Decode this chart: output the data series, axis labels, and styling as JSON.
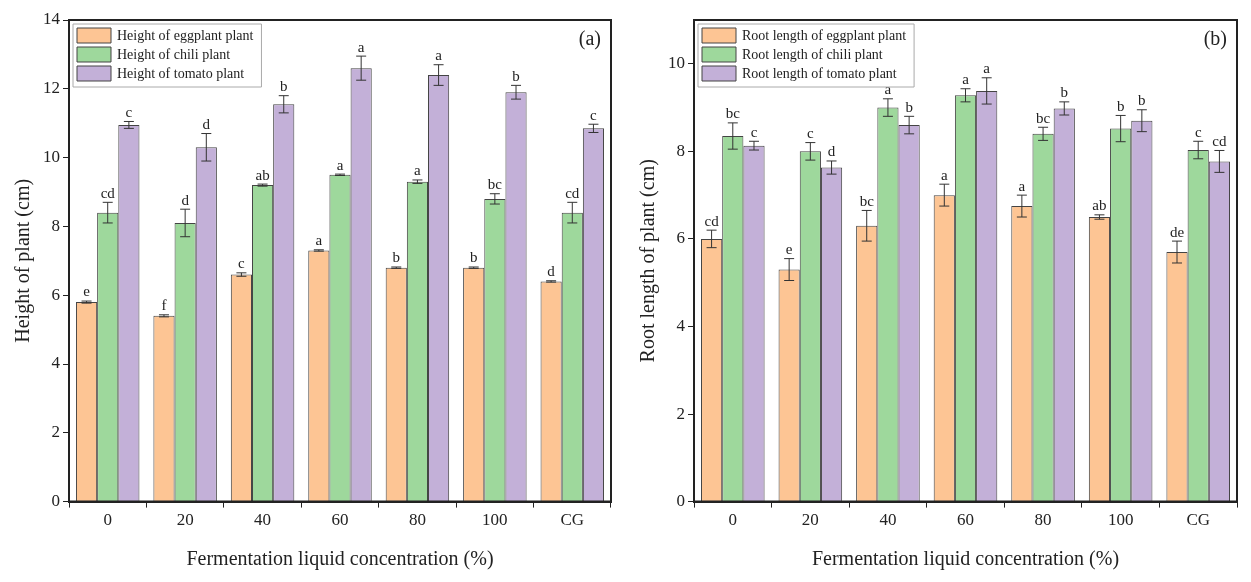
{
  "chart_data": [
    {
      "type": "bar",
      "xlabel": "Fermentation liquid concentration (%)",
      "ylabel": "Height of plant (cm)",
      "categories": [
        "0",
        "20",
        "40",
        "60",
        "80",
        "100",
        "CG"
      ],
      "ylim": [
        0,
        14
      ],
      "yticks": [
        0,
        2,
        4,
        6,
        8,
        10,
        12,
        14
      ],
      "grid": false,
      "legend": "top left",
      "series": [
        {
          "name": "Height of eggplant plant",
          "color": "#fdc594",
          "values": [
            5.8,
            5.4,
            6.6,
            7.3,
            6.8,
            6.8,
            6.4
          ],
          "errors": [
            0.03,
            0.03,
            0.05,
            0.02,
            0.02,
            0.02,
            0.02
          ],
          "value_labels": [
            "e",
            "f",
            "c",
            "a",
            "b",
            "b",
            "d"
          ]
        },
        {
          "name": "Height of chili plant",
          "color": "#9ed89c",
          "values": [
            8.4,
            8.1,
            9.2,
            9.5,
            9.3,
            8.8,
            8.4
          ],
          "errors": [
            0.3,
            0.4,
            0.03,
            0.02,
            0.05,
            0.15,
            0.3
          ],
          "value_labels": [
            "cd",
            "d",
            "ab",
            "a",
            "a",
            "bc",
            "cd"
          ]
        },
        {
          "name": "Height of tomato plant",
          "color": "#c3b0d8",
          "values": [
            10.95,
            10.3,
            11.55,
            12.6,
            12.4,
            11.9,
            10.85
          ],
          "errors": [
            0.1,
            0.4,
            0.25,
            0.35,
            0.3,
            0.2,
            0.12
          ],
          "value_labels": [
            "c",
            "d",
            "b",
            "a",
            "a",
            "b",
            "c"
          ]
        }
      ],
      "annotations": [
        "(a)"
      ]
    },
    {
      "type": "bar",
      "xlabel": "Fermentation liquid concentration (%)",
      "ylabel": "Root length of plant (cm)",
      "categories": [
        "0",
        "20",
        "40",
        "60",
        "80",
        "100",
        "CG"
      ],
      "ylim": [
        0,
        11
      ],
      "yticks": [
        0,
        2,
        4,
        6,
        8,
        10
      ],
      "grid": false,
      "legend": "top left",
      "series": [
        {
          "name": "Root length of eggplant plant",
          "color": "#fdc594",
          "values": [
            6.0,
            5.3,
            6.3,
            7.0,
            6.75,
            6.5,
            5.7
          ],
          "errors": [
            0.2,
            0.25,
            0.35,
            0.25,
            0.25,
            0.05,
            0.25
          ],
          "value_labels": [
            "cd",
            "e",
            "bc",
            "a",
            "a",
            "ab",
            "de"
          ]
        },
        {
          "name": "Root length of chili plant",
          "color": "#9ed89c",
          "values": [
            8.35,
            8.0,
            9.0,
            9.28,
            8.4,
            8.52,
            8.03
          ],
          "errors": [
            0.3,
            0.2,
            0.2,
            0.15,
            0.15,
            0.3,
            0.2
          ],
          "value_labels": [
            "bc",
            "c",
            "a",
            "a",
            "bc",
            "b",
            "c"
          ]
        },
        {
          "name": "Root length of tomato plant",
          "color": "#c3b0d8",
          "values": [
            8.13,
            7.63,
            8.6,
            9.38,
            8.98,
            8.7,
            7.77
          ],
          "errors": [
            0.1,
            0.15,
            0.2,
            0.3,
            0.15,
            0.25,
            0.25
          ],
          "value_labels": [
            "c",
            "d",
            "b",
            "a",
            "b",
            "b",
            "cd"
          ]
        }
      ],
      "annotations": [
        "(b)"
      ]
    }
  ]
}
